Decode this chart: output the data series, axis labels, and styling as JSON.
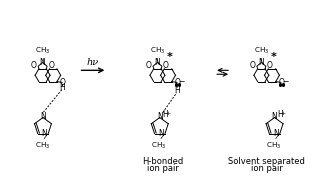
{
  "background_color": "#ffffff",
  "fig_width": 3.17,
  "fig_height": 1.8,
  "dpi": 100,
  "label_hbonded_line1": "H-bonded",
  "label_hbonded_line2": "ion pair",
  "label_solvent_line1": "Solvent separated",
  "label_solvent_line2": "ion pair",
  "hv_label": "hν",
  "font_size_labels": 6.0,
  "font_size_chem": 5.2,
  "font_size_atom": 5.5,
  "text_color": "#000000",
  "lw": 0.7
}
